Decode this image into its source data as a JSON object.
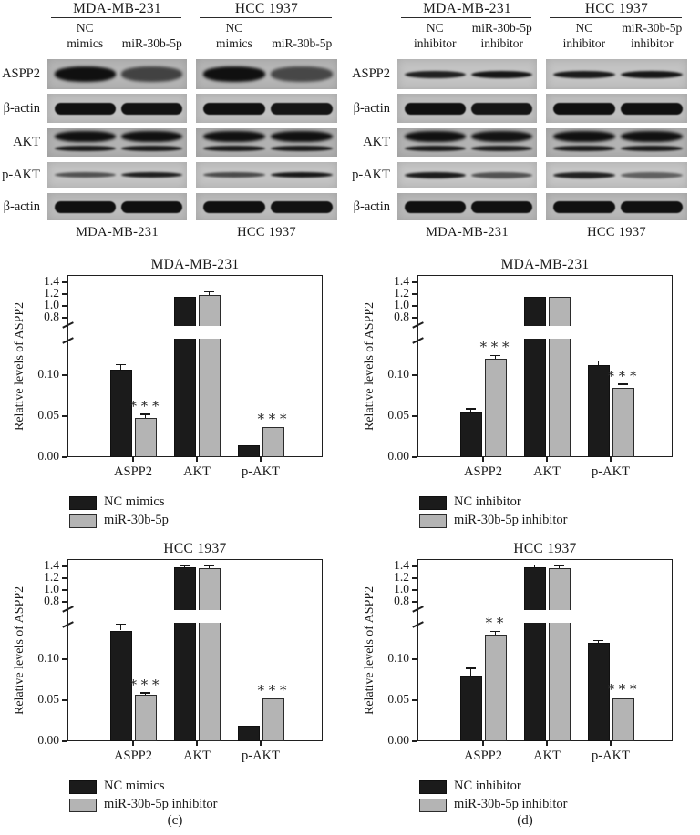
{
  "figure": {
    "panel_labels": {
      "c": "(c)",
      "d": "(d)"
    },
    "colors": {
      "black_bar": "#1b1b1b",
      "gray_bar": "#b4b4b4",
      "band": "#101010",
      "text": "#1a1a1a"
    }
  },
  "blots": [
    {
      "groups": [
        {
          "header": "MDA-MB-231",
          "lanes": [
            "NC\nmimics",
            "miR-30b-5p"
          ],
          "footer": "MDA-MB-231"
        },
        {
          "header": "HCC 1937",
          "lanes": [
            "NC\nmimics",
            "miR-30b-5p"
          ],
          "footer": "HCC 1937"
        }
      ],
      "rows": [
        {
          "label": "ASPP2",
          "type": "thick",
          "h": 17,
          "bg": "#b6b6b6",
          "lanes": [
            [
              1,
              0.62
            ],
            [
              1,
              0.58
            ]
          ]
        },
        {
          "label": "β-actin",
          "type": "pill",
          "h": 13,
          "bg": "#c1c1c1",
          "lanes": [
            [
              1,
              0.98
            ],
            [
              1,
              0.96
            ]
          ]
        },
        {
          "label": "AKT",
          "type": "double",
          "h": 12,
          "bg": "#b2b2b2",
          "lanes": [
            [
              1,
              1
            ],
            [
              1,
              1
            ]
          ]
        },
        {
          "label": "p-AKT",
          "type": "thin",
          "h": 6,
          "bg": "#c4c4c4",
          "lanes": [
            [
              0.55,
              0.9
            ],
            [
              0.6,
              0.95
            ]
          ]
        },
        {
          "label": "β-actin",
          "type": "pill",
          "h": 13,
          "bg": "#bcbcbc",
          "lanes": [
            [
              1,
              1
            ],
            [
              1,
              0.98
            ]
          ]
        }
      ]
    },
    {
      "groups": [
        {
          "header": "MDA-MB-231",
          "lanes": [
            "NC\ninhibitor",
            "miR-30b-5p\ninhibitor"
          ],
          "footer": "MDA-MB-231"
        },
        {
          "header": "HCC 1937",
          "lanes": [
            "NC\ninhibitor",
            "miR-30b-5p\ninhibitor"
          ],
          "footer": "HCC 1937"
        }
      ],
      "rows": [
        {
          "label": "ASPP2",
          "type": "thin",
          "h": 8,
          "bg": "#c3c3c3",
          "lanes": [
            [
              0.88,
              0.95
            ],
            [
              0.92,
              0.95
            ]
          ]
        },
        {
          "label": "β-actin",
          "type": "pill",
          "h": 13,
          "bg": "#bfbfbf",
          "lanes": [
            [
              1,
              0.96
            ],
            [
              1,
              1
            ]
          ]
        },
        {
          "label": "AKT",
          "type": "double",
          "h": 12,
          "bg": "#b3b3b3",
          "lanes": [
            [
              1,
              0.97
            ],
            [
              1,
              1
            ]
          ]
        },
        {
          "label": "p-AKT",
          "type": "thin",
          "h": 7,
          "bg": "#c6c6c6",
          "lanes": [
            [
              0.92,
              0.55
            ],
            [
              0.88,
              0.45
            ]
          ]
        },
        {
          "label": "β-actin",
          "type": "pill",
          "h": 13,
          "bg": "#b9b9b9",
          "lanes": [
            [
              1,
              1
            ],
            [
              1,
              1
            ]
          ]
        }
      ]
    }
  ],
  "chart_data": [
    {
      "type": "bar",
      "title": "MDA-MB-231",
      "ylabel": "Relative levels of ASPP2",
      "categories": [
        "ASPP2",
        "AKT",
        "p-AKT"
      ],
      "y_ticks_lower": [
        "0.00",
        "0.05",
        "0.10"
      ],
      "y_ticks_upper": [
        "0.8",
        "1.0",
        "1.2",
        "1.4"
      ],
      "axis_break": {
        "lower_max": 0.145,
        "upper_min": 0.8
      },
      "ylim": [
        0,
        1.5
      ],
      "grid": false,
      "legend_position": "bottom-left",
      "series": [
        {
          "name": "NC mimics",
          "fill": "black",
          "values": [
            0.107,
            1.15,
            0.015
          ],
          "errors": [
            0.006,
            0,
            0
          ]
        },
        {
          "name": "miR-30b-5p",
          "fill": "gray",
          "values": [
            0.048,
            1.19,
            0.037
          ],
          "errors": [
            0.004,
            0.05,
            0
          ],
          "significance": [
            "***",
            "",
            "***"
          ]
        }
      ]
    },
    {
      "type": "bar",
      "title": "MDA-MB-231",
      "ylabel": "Relative levels of ASPP2",
      "categories": [
        "ASPP2",
        "AKT",
        "p-AKT"
      ],
      "y_ticks_lower": [
        "0.00",
        "0.05",
        "0.10"
      ],
      "y_ticks_upper": [
        "0.8",
        "1.0",
        "1.2",
        "1.4"
      ],
      "axis_break": {
        "lower_max": 0.145,
        "upper_min": 0.8
      },
      "ylim": [
        0,
        1.5
      ],
      "grid": false,
      "legend_position": "bottom-left",
      "series": [
        {
          "name": "NC inhibitor",
          "fill": "black",
          "values": [
            0.055,
            1.16,
            0.112
          ],
          "errors": [
            0.004,
            0,
            0.005
          ]
        },
        {
          "name": "miR-30b-5p inhibitor",
          "fill": "gray",
          "values": [
            0.12,
            1.15,
            0.085
          ],
          "errors": [
            0.004,
            0,
            0.004
          ],
          "significance": [
            "***",
            "",
            "***"
          ]
        }
      ]
    },
    {
      "type": "bar",
      "title": "HCC 1937",
      "ylabel": "Relative levels of ASPP2",
      "categories": [
        "ASPP2",
        "AKT",
        "p-AKT"
      ],
      "y_ticks_lower": [
        "0.00",
        "0.05",
        "0.10"
      ],
      "y_ticks_upper": [
        "0.8",
        "1.0",
        "1.2",
        "1.4"
      ],
      "axis_break": {
        "lower_max": 0.145,
        "upper_min": 0.8
      },
      "ylim": [
        0,
        1.5
      ],
      "grid": false,
      "legend_position": "bottom-left",
      "series": [
        {
          "name": "NC mimics",
          "fill": "black",
          "values": [
            0.135,
            1.39,
            0.019
          ],
          "errors": [
            0.008,
            0.025,
            0
          ]
        },
        {
          "name": "miR-30b-5p inhibitor",
          "fill": "gray",
          "values": [
            0.057,
            1.37,
            0.052
          ],
          "errors": [
            0.002,
            0.04,
            0
          ],
          "significance": [
            "***",
            "",
            "***"
          ]
        }
      ]
    },
    {
      "type": "bar",
      "title": "HCC 1937",
      "ylabel": "Relative levels of ASPP2",
      "categories": [
        "ASPP2",
        "AKT",
        "p-AKT"
      ],
      "y_ticks_lower": [
        "0.00",
        "0.05",
        "0.10"
      ],
      "y_ticks_upper": [
        "0.8",
        "1.0",
        "1.2",
        "1.4"
      ],
      "axis_break": {
        "lower_max": 0.145,
        "upper_min": 0.8
      },
      "ylim": [
        0,
        1.5
      ],
      "grid": false,
      "legend_position": "bottom-left",
      "series": [
        {
          "name": "NC inhibitor",
          "fill": "black",
          "values": [
            0.08,
            1.39,
            0.12
          ],
          "errors": [
            0.009,
            0.035,
            0.003
          ]
        },
        {
          "name": "miR-30b-5p inhibitor",
          "fill": "gray",
          "values": [
            0.13,
            1.37,
            0.052
          ],
          "errors": [
            0.004,
            0.035,
            0.001
          ],
          "significance": [
            "**",
            "",
            "***"
          ]
        }
      ]
    }
  ]
}
